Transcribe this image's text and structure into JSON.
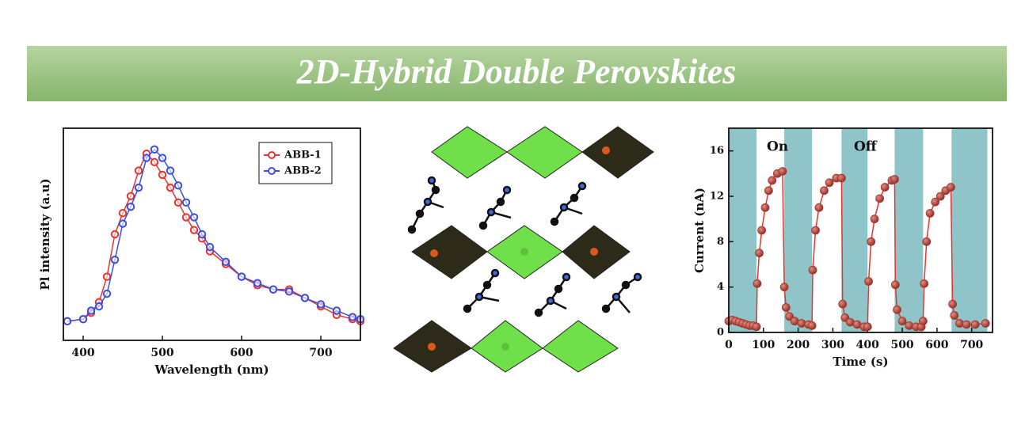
{
  "title": "2D-Hybrid Double Perovskites",
  "chart_data": [
    {
      "type": "line",
      "x_label": "Wavelength (nm)",
      "y_label": "Pl intensity (a.u)",
      "x": [
        380,
        400,
        410,
        420,
        430,
        440,
        450,
        460,
        470,
        480,
        490,
        500,
        510,
        520,
        530,
        540,
        550,
        560,
        580,
        600,
        620,
        640,
        660,
        680,
        700,
        720,
        740,
        750
      ],
      "series": [
        {
          "name": "ABB-1",
          "color": "#e8322b",
          "values": [
            0.09,
            0.1,
            0.13,
            0.18,
            0.3,
            0.5,
            0.6,
            0.68,
            0.8,
            0.88,
            0.84,
            0.78,
            0.72,
            0.65,
            0.58,
            0.52,
            0.48,
            0.42,
            0.36,
            0.3,
            0.26,
            0.24,
            0.24,
            0.2,
            0.16,
            0.12,
            0.1,
            0.09
          ]
        },
        {
          "name": "ABB-2",
          "color": "#3a4ee0",
          "values": [
            0.09,
            0.1,
            0.14,
            0.16,
            0.22,
            0.38,
            0.55,
            0.63,
            0.72,
            0.86,
            0.9,
            0.86,
            0.8,
            0.73,
            0.65,
            0.58,
            0.5,
            0.44,
            0.37,
            0.3,
            0.27,
            0.24,
            0.23,
            0.2,
            0.17,
            0.14,
            0.11,
            0.1
          ]
        }
      ],
      "xlim": [
        375,
        750
      ],
      "xticks": [
        400,
        500,
        600,
        700
      ],
      "ylim": [
        0,
        1
      ],
      "legend": "upper right"
    },
    {
      "type": "line",
      "x_label": "Time (s)",
      "y_label": "Current (nA)",
      "annotations": [
        "On",
        "Off"
      ],
      "shaded_regions": [
        [
          0,
          80
        ],
        [
          160,
          240
        ],
        [
          325,
          400
        ],
        [
          478,
          560
        ],
        [
          642,
          745
        ]
      ],
      "shade_color": "#8fc4c9",
      "x": [
        0,
        10,
        20,
        30,
        40,
        50,
        60,
        70,
        80,
        82,
        88,
        95,
        105,
        115,
        125,
        140,
        155,
        160,
        165,
        175,
        190,
        210,
        230,
        240,
        242,
        250,
        260,
        275,
        290,
        310,
        325,
        328,
        335,
        350,
        370,
        390,
        400,
        403,
        410,
        420,
        435,
        450,
        470,
        478,
        480,
        485,
        500,
        520,
        540,
        555,
        560,
        563,
        570,
        580,
        595,
        610,
        625,
        640,
        645,
        650,
        665,
        685,
        710,
        740
      ],
      "series": [
        {
          "color": "#e8322b",
          "marker_color": "#a8372f",
          "values": [
            1.0,
            1.1,
            1.0,
            0.9,
            0.8,
            0.7,
            0.6,
            0.6,
            0.5,
            4.3,
            7,
            9,
            11,
            12.5,
            13.4,
            14,
            14.2,
            4.0,
            2.2,
            1.4,
            1.0,
            0.8,
            0.7,
            0.6,
            5.5,
            9,
            11,
            12.5,
            13.2,
            13.6,
            13.6,
            2.5,
            1.3,
            0.9,
            0.7,
            0.5,
            0.5,
            4.5,
            8,
            10,
            11.8,
            12.8,
            13.4,
            13.5,
            4.2,
            2.0,
            1.0,
            0.6,
            0.5,
            0.5,
            1.0,
            4.3,
            8,
            10.5,
            11.5,
            12,
            12.5,
            12.8,
            2.5,
            1.5,
            0.8,
            0.7,
            0.7,
            0.8
          ]
        }
      ],
      "xlim": [
        0,
        760
      ],
      "xticks": [
        0,
        100,
        200,
        300,
        400,
        500,
        600,
        700
      ],
      "ylim": [
        0,
        18
      ],
      "yticks": [
        0,
        4,
        8,
        12,
        16
      ]
    }
  ]
}
